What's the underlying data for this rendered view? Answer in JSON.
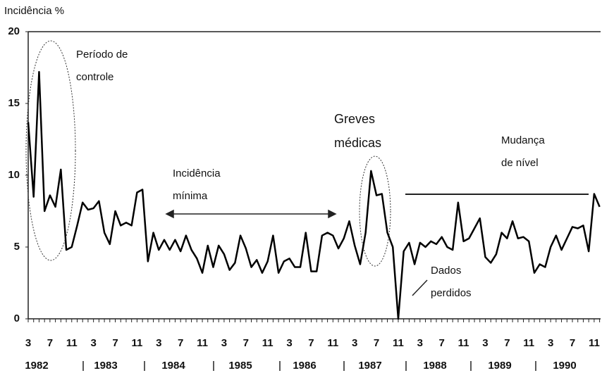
{
  "chart_data": {
    "type": "line",
    "y_label": "Incidência %",
    "ylim": [
      0,
      20
    ],
    "yticks": [
      0,
      5,
      10,
      15,
      20
    ],
    "categories": [
      "3",
      null,
      null,
      null,
      "7",
      null,
      null,
      null,
      "11",
      null,
      null,
      null,
      "3",
      null,
      null,
      null,
      "7",
      null,
      null,
      null,
      "11",
      null,
      null,
      null,
      "3",
      null,
      null,
      null,
      "7",
      null,
      null,
      null,
      "11",
      null,
      null,
      null,
      "3",
      null,
      null,
      null,
      "7",
      null,
      null,
      null,
      "11",
      null,
      null,
      null,
      "3",
      null,
      null,
      null,
      "7",
      null,
      null,
      null,
      "11",
      null,
      null,
      null,
      "3",
      null,
      null,
      null,
      "7",
      null,
      null,
      null,
      "11",
      null,
      null,
      null,
      "3",
      null,
      null,
      null,
      "7",
      null,
      null,
      null,
      "11",
      null,
      null,
      null,
      "3",
      null,
      null,
      null,
      "7",
      null,
      null,
      null,
      "11",
      null,
      null,
      null,
      "3",
      null,
      null,
      null,
      "7",
      null,
      null,
      null,
      "11",
      null
    ],
    "year_labels": [
      "1982",
      "1983",
      "1984",
      "1985",
      "1986",
      "1987",
      "1988",
      "1989",
      "1990"
    ],
    "series": [
      {
        "color": "#000000",
        "values": [
          13.7,
          8.5,
          17.2,
          7.5,
          8.6,
          7.8,
          10.4,
          4.8,
          5.0,
          6.5,
          8.1,
          7.6,
          7.7,
          8.2,
          6.0,
          5.2,
          7.5,
          6.5,
          6.7,
          6.5,
          8.8,
          9.0,
          4.0,
          6.0,
          4.8,
          5.5,
          4.8,
          5.5,
          4.7,
          5.8,
          4.8,
          4.2,
          3.2,
          5.1,
          3.6,
          5.1,
          4.5,
          3.4,
          3.9,
          5.8,
          4.9,
          3.6,
          4.1,
          3.2,
          4.0,
          5.8,
          3.2,
          4.0,
          4.2,
          3.6,
          3.6,
          6.0,
          3.3,
          3.3,
          5.8,
          6.0,
          5.8,
          4.9,
          5.6,
          6.8,
          5.1,
          3.8,
          6.0,
          10.3,
          8.6,
          8.7,
          6.0,
          5.0,
          0,
          4.7,
          5.3,
          3.8,
          5.3,
          5.0,
          5.4,
          5.2,
          5.7,
          5.0,
          4.8,
          8.1,
          5.4,
          5.6,
          6.3,
          7.0,
          4.3,
          3.9,
          4.5,
          6.0,
          5.6,
          6.8,
          5.6,
          5.7,
          5.4,
          3.2,
          3.8,
          3.6,
          5.0,
          5.8,
          4.8,
          5.6,
          6.4,
          6.3,
          6.5,
          4.7,
          8.7,
          7.8
        ]
      }
    ],
    "annotations": [
      {
        "lines": [
          "Período de",
          "controle"
        ]
      },
      {
        "lines": [
          "Incidência",
          "mínima"
        ]
      },
      {
        "lines": [
          "Greves",
          "médicas"
        ]
      },
      {
        "lines": [
          "Mudança",
          "de nível"
        ]
      },
      {
        "lines": [
          "Dados",
          "perdidos"
        ]
      }
    ]
  }
}
